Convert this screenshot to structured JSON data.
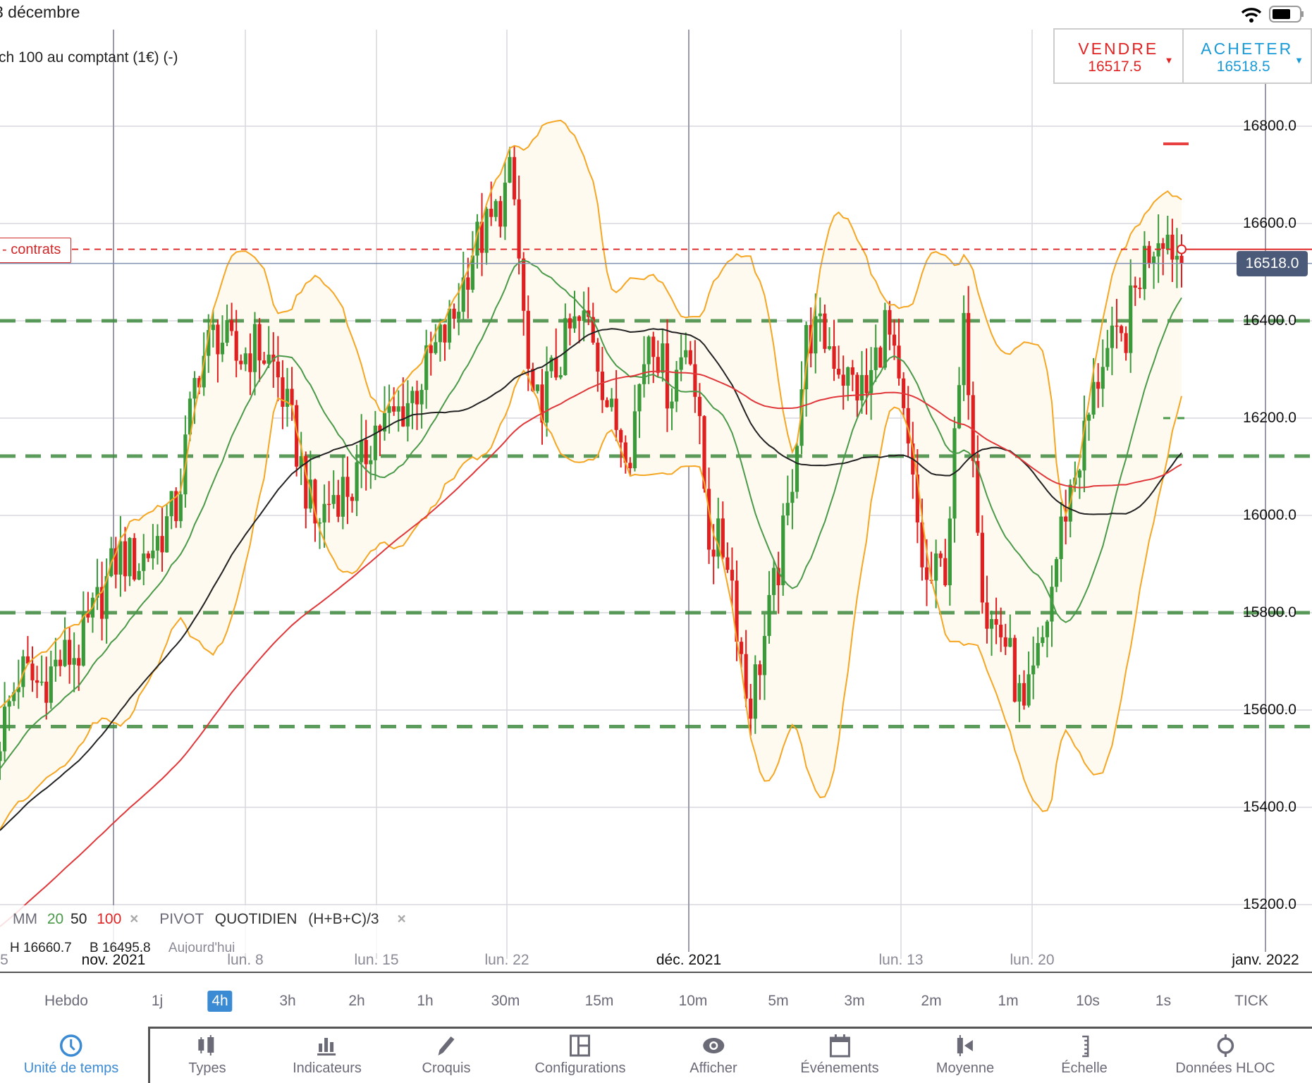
{
  "status_bar": {
    "date": "3 décembre",
    "wifi_icon": "wifi-icon",
    "battery_icon": "battery-icon"
  },
  "instrument": {
    "title": "ch 100 au comptant (1€) (-)"
  },
  "trade": {
    "sell_label": "VENDRE",
    "sell_price": "16517.5",
    "buy_label": "ACHETER",
    "buy_price": "16518.5",
    "sell_color": "#e02424",
    "buy_color": "#1a9ad6"
  },
  "position_tag": {
    "label": "contrats",
    "prefix": "-"
  },
  "current_price": "16518.0",
  "legend": {
    "ma_label": "MM",
    "ma_20": "20",
    "ma_50": "50",
    "ma_100": "100",
    "pivot_label": "PIVOT",
    "pivot_period": "QUOTIDIEN",
    "pivot_formula": "(H+B+C)/3",
    "close": "×",
    "high": "H 16660.7",
    "low": "B 16495.8",
    "today": "Aujourd'hui"
  },
  "chart_data": {
    "type": "candlestick",
    "y_ticks": [
      "16800.0",
      "16600.0",
      "16400.0",
      "16200.0",
      "16000.0",
      "15800.0",
      "15600.0",
      "15400.0",
      "15200.0"
    ],
    "ylim": [
      15150,
      16900
    ],
    "x_labels": [
      {
        "text": "5",
        "major": false
      },
      {
        "text": "nov. 2021",
        "major": true
      },
      {
        "text": "lun. 8",
        "major": false
      },
      {
        "text": "lun. 15",
        "major": false
      },
      {
        "text": "lun. 22",
        "major": false
      },
      {
        "text": "déc. 2021",
        "major": true
      },
      {
        "text": "lun. 13",
        "major": false
      },
      {
        "text": "lun. 20",
        "major": false
      },
      {
        "text": "janv. 2022",
        "major": true
      }
    ],
    "grid": true,
    "approx_closes": [
      15550,
      15680,
      15650,
      15700,
      15720,
      15820,
      15920,
      15900,
      15950,
      16020,
      16300,
      16380,
      16320,
      16350,
      16300,
      16150,
      15980,
      16050,
      16060,
      16180,
      16200,
      16250,
      16330,
      16400,
      16550,
      16600,
      16700,
      16200,
      16280,
      16380,
      16400,
      16200,
      16150,
      16400,
      16250,
      16380,
      15960,
      15920,
      15600,
      15780,
      16000,
      16380,
      16360,
      16280,
      16250,
      16400,
      16160,
      15850,
      15900,
      16400,
      15800,
      15750,
      15580,
      15750,
      16000,
      16150,
      16330,
      16350,
      16520,
      16600,
      16518
    ],
    "last_price": 16518.0,
    "order_level": 16547,
    "pivot_levels": [
      16400,
      16122,
      15800,
      15566
    ],
    "indicators": {
      "moving_averages": [
        {
          "period": 20,
          "color": "#4a9a4a"
        },
        {
          "period": 50,
          "color": "#222222"
        },
        {
          "period": 100,
          "color": "#e0383a"
        }
      ],
      "bollinger": {
        "color": "#f5a623",
        "fill": "#fffaf0"
      }
    },
    "colors": {
      "up": "#3a9a3a",
      "down": "#e02020",
      "pivot": "#3f8a3f"
    }
  },
  "timeframes": {
    "items": [
      "Hebdo",
      "1j",
      "4h",
      "3h",
      "2h",
      "1h",
      "30m",
      "15m",
      "10m",
      "5m",
      "3m",
      "2m",
      "1m",
      "10s",
      "1s",
      "TICK"
    ],
    "selected": "4h"
  },
  "toolbar": {
    "items": [
      {
        "label": "Unité de temps",
        "icon": "clock-icon"
      },
      {
        "label": "Types",
        "icon": "candles-icon"
      },
      {
        "label": "Indicateurs",
        "icon": "bar-chart-icon"
      },
      {
        "label": "Croquis",
        "icon": "pencil-icon"
      },
      {
        "label": "Configurations",
        "icon": "layout-icon"
      },
      {
        "label": "Afficher",
        "icon": "eye-icon"
      },
      {
        "label": "Événements",
        "icon": "calendar-icon"
      },
      {
        "label": "Moyenne",
        "icon": "average-icon"
      },
      {
        "label": "Échelle",
        "icon": "ruler-icon"
      },
      {
        "label": "Données HLOC",
        "icon": "crosshair-icon"
      }
    ],
    "selected": "Unité de temps"
  }
}
